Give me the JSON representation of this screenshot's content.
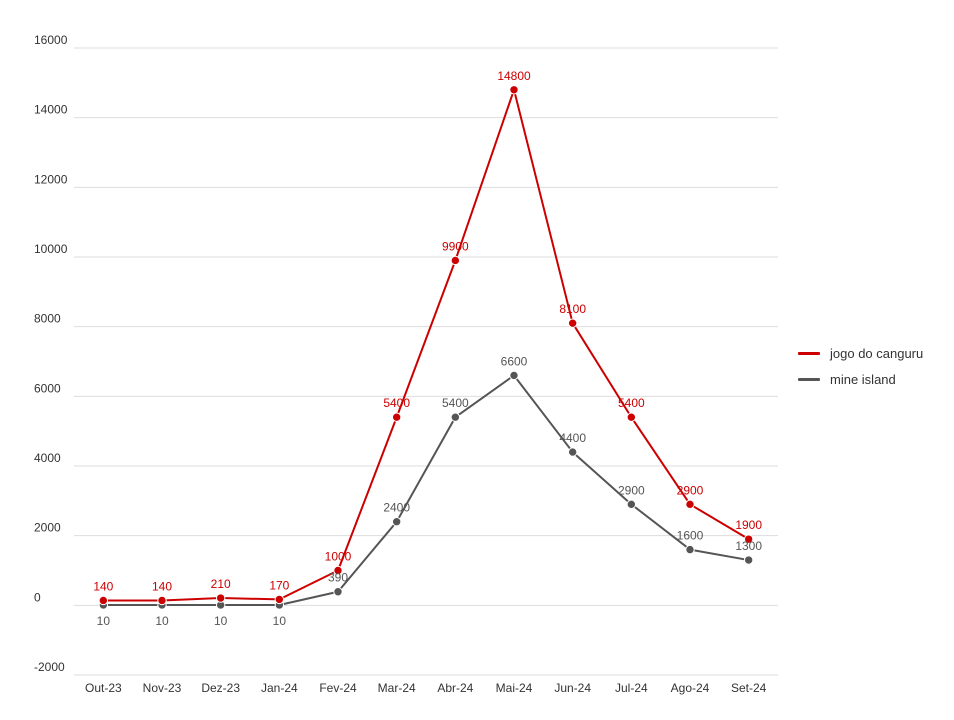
{
  "chart_data": {
    "type": "line",
    "categories": [
      "Out-23",
      "Nov-23",
      "Dez-23",
      "Jan-24",
      "Fev-24",
      "Mar-24",
      "Abr-24",
      "Mai-24",
      "Jun-24",
      "Jul-24",
      "Ago-24",
      "Set-24"
    ],
    "ylim": [
      -2000,
      16000
    ],
    "yticks": [
      -2000,
      0,
      2000,
      4000,
      6000,
      8000,
      10000,
      12000,
      14000,
      16000
    ],
    "grid": true,
    "legend_position": "right",
    "series": [
      {
        "name": "jogo do canguru",
        "color": "#cc0000",
        "values": [
          140,
          140,
          210,
          170,
          1000,
          5400,
          9900,
          14800,
          8100,
          5400,
          2900,
          1900
        ],
        "labels": [
          "140",
          "140",
          "210",
          "170",
          "1000",
          "5400",
          "9900",
          "14800",
          "8100",
          "5400",
          "2900",
          "1900"
        ]
      },
      {
        "name": "mine island",
        "color": "#555555",
        "values": [
          10,
          10,
          10,
          10,
          390,
          2400,
          5400,
          6600,
          4400,
          2900,
          1600,
          1300
        ],
        "labels": [
          "10",
          "10",
          "10",
          "10",
          "390",
          "2400",
          "5400",
          "6600",
          "4400",
          "2900",
          "1600",
          "1300"
        ]
      }
    ]
  }
}
